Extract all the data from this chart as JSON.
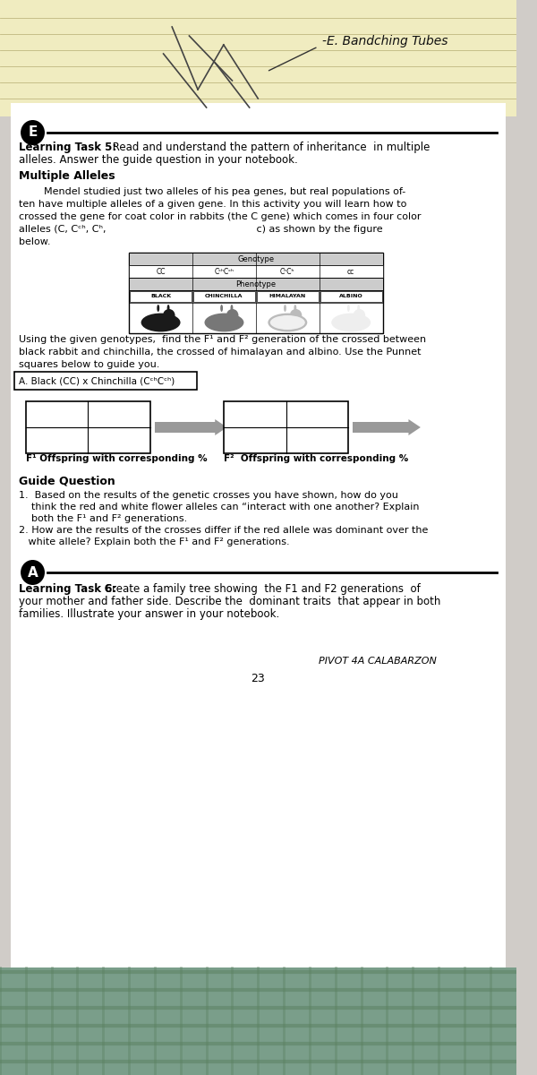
{
  "bg_color": "#d0ccc8",
  "page_bg": "#ffffff",
  "top_section_bg": "#f0ecc0",
  "black": "#000000",
  "white": "#ffffff",
  "gray_arrow": "#999999",
  "header_text": "-E. Bandching Tubes",
  "e_label": "E",
  "task5_bold": "Learning Task 5:",
  "task5_line1": " Read and understand the pattern of inheritance  in multiple",
  "task5_line2": "alleles. Answer the guide question in your notebook.",
  "multiple_alleles_title": "Multiple Alleles",
  "para_lines": [
    "        Mendel studied just two alleles of his pea genes, but real populations of-",
    "ten have multiple alleles of a given gene. In this activity you will learn how to",
    "crossed the gene for coat color in rabbits (the C gene) which comes in four color",
    "alleles (C, Cᶜʰ, Cʰ,                                                c) as shown by the figure",
    "below."
  ],
  "table_header_genotype": "Genotype",
  "table_header_phenotype": "Phenotype",
  "geno_vals": [
    "CC",
    "CᶜʰCᶜʰ",
    "CʰCʰ",
    "cc"
  ],
  "pheno_vals": [
    "BLACK",
    "CHINCHILLA",
    "HIMALAYAN",
    "ALBINO"
  ],
  "using_lines": [
    "Using the given genotypes,  find the F¹ and F² generation of the crossed between",
    "black rabbit and chinchilla, the crossed of himalayan and albino. Use the Punnet",
    "squares below to guide you."
  ],
  "cross_label": "A. Black (CC) x Chinchilla (CᶜʰCᶜʰ)",
  "f1_label": "F¹ Offspring with corresponding %",
  "f2_label": "F²  Offspring with corresponding %",
  "guide_q_title": "Guide Question",
  "gq1_lines": [
    "1.  Based on the results of the genetic crosses you have shown, how do you",
    "    think the red and white flower alleles can “interact with one another? Explain",
    "    both the F¹ and F² generations."
  ],
  "gq2_lines": [
    "2. How are the results of the crosses differ if the red allele was dominant over the",
    "   white allele? Explain both the F¹ and F² generations."
  ],
  "a_label": "A",
  "task6_bold": "Learning Task 6:",
  "task6_line1": " Create a family tree showing  the F1 and F2 generations  of",
  "task6_line2": "your mother and father side. Describe the  dominant traits  that appear in both",
  "task6_line3": "families. Illustrate your answer in your notebook.",
  "pivot_text": "PIVOT 4A CALABARZON",
  "page_num": "23",
  "rabbit_colors": [
    "#1a1a1a",
    "#777777",
    "#bbbbbb",
    "#eeeeee"
  ],
  "table_header_bg": "#cccccc",
  "table_cell_bg": "#ffffff"
}
